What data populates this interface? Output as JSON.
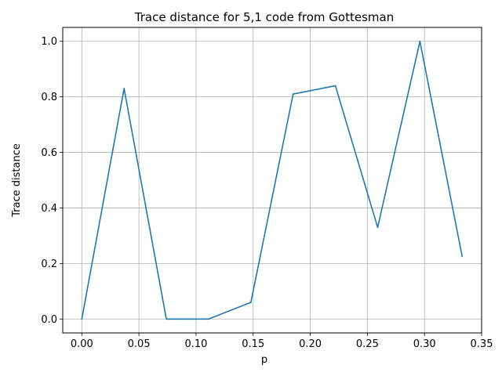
{
  "chart_data": {
    "type": "line",
    "title": "Trace distance for 5,1 code from Gottesman",
    "xlabel": "p",
    "ylabel": "Trace distance",
    "xlim": [
      -0.0167,
      0.35
    ],
    "ylim": [
      -0.05,
      1.05
    ],
    "xticks": [
      0.0,
      0.05,
      0.1,
      0.15,
      0.2,
      0.25,
      0.3,
      0.35
    ],
    "xtick_labels": [
      "0.00",
      "0.05",
      "0.10",
      "0.15",
      "0.20",
      "0.25",
      "0.30",
      "0.35"
    ],
    "yticks": [
      0.0,
      0.2,
      0.4,
      0.6,
      0.8,
      1.0
    ],
    "ytick_labels": [
      "0.0",
      "0.2",
      "0.4",
      "0.6",
      "0.8",
      "1.0"
    ],
    "grid": true,
    "series": [
      {
        "color": "#1f77b4",
        "x": [
          0.0,
          0.037,
          0.074,
          0.111,
          0.148,
          0.185,
          0.222,
          0.259,
          0.296,
          0.333
        ],
        "y": [
          0.0,
          0.83,
          0.0,
          0.0,
          0.06,
          0.81,
          0.84,
          0.33,
          1.0,
          0.225
        ]
      }
    ]
  }
}
